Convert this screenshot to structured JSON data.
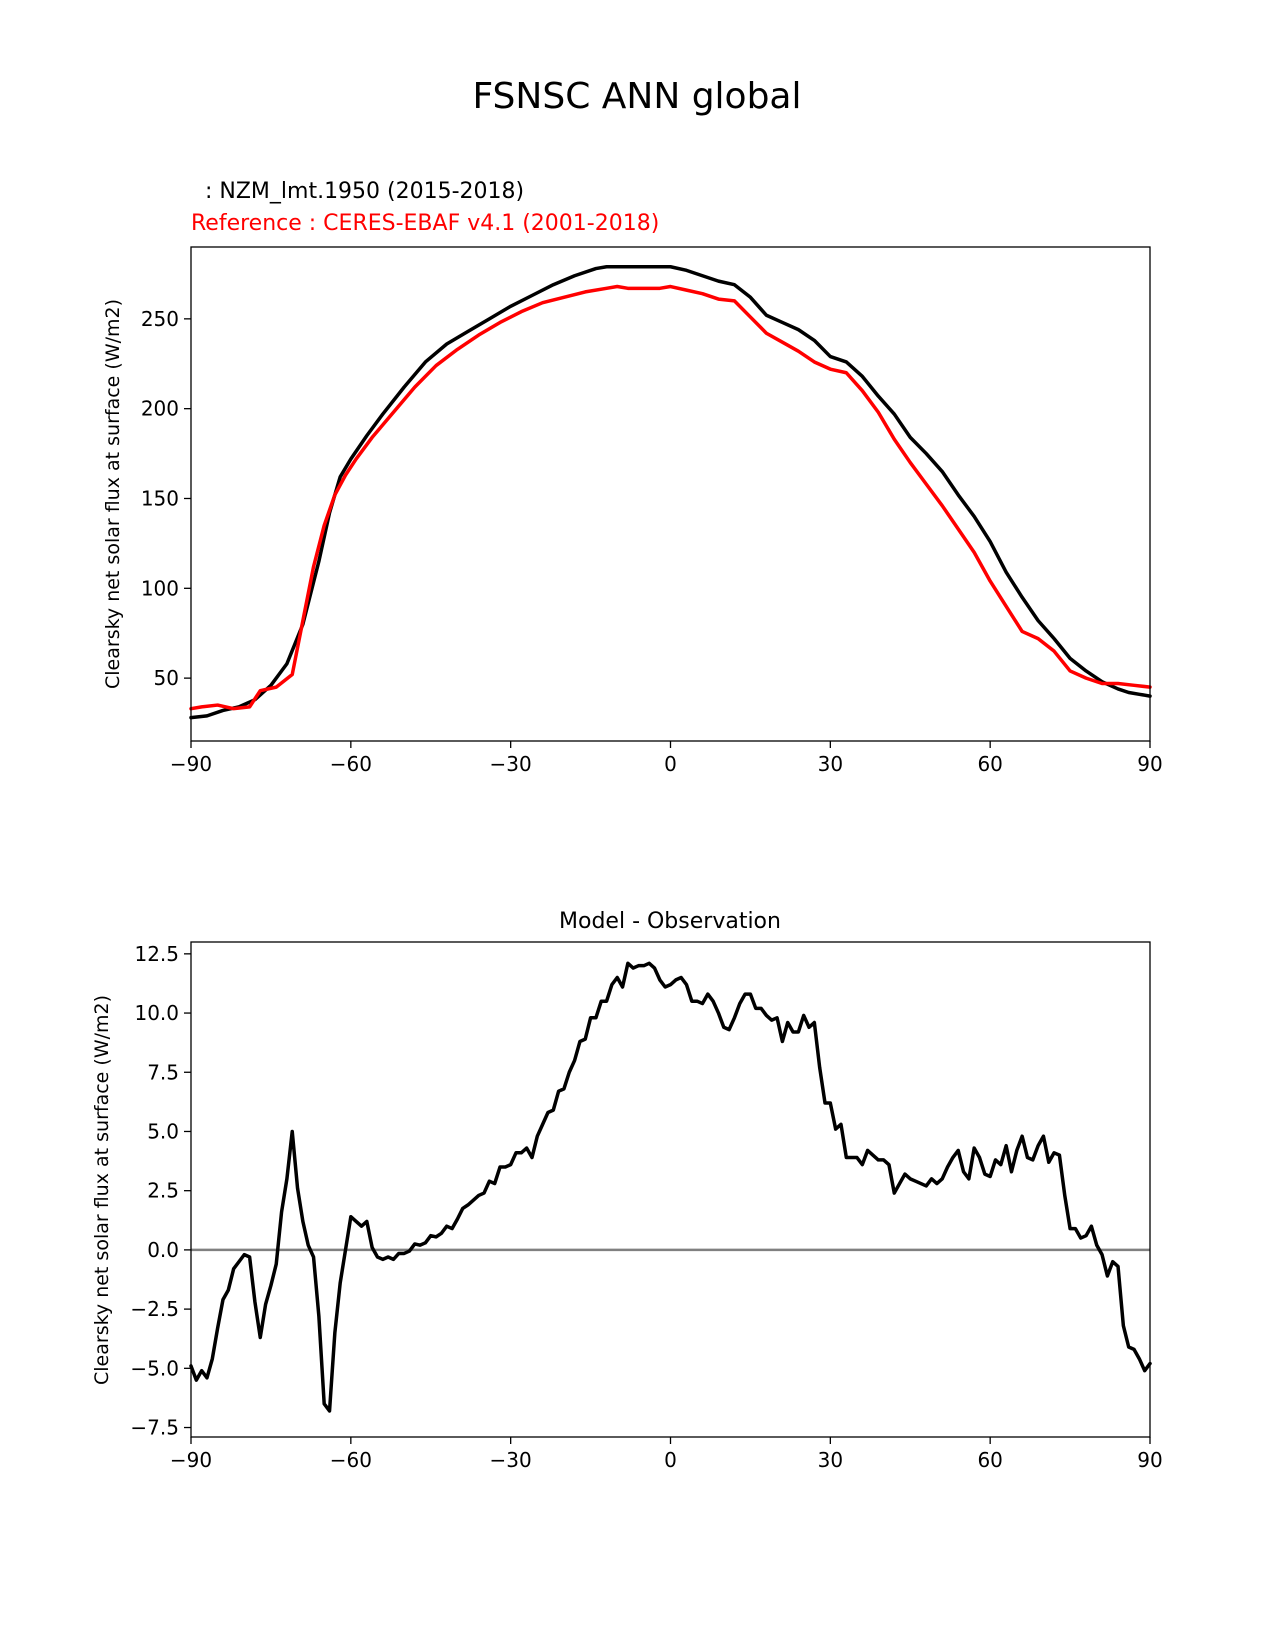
{
  "figure": {
    "suptitle": "FSNSC ANN global"
  },
  "chart_data": [
    {
      "type": "line",
      "title_lines": [
        {
          "text": "  : NZM_lmt.1950 (2015-2018)",
          "color": "#000000"
        },
        {
          "text": "Reference : CERES-EBAF v4.1 (2001-2018)",
          "color": "#ff0000"
        }
      ],
      "xlabel": "",
      "ylabel": "Clearsky net solar flux at surface (W/m2)",
      "xlim": [
        -90,
        90
      ],
      "ylim": [
        15,
        290
      ],
      "xticks": [
        -90,
        -60,
        -30,
        0,
        30,
        60,
        90
      ],
      "xtick_labels": [
        "−90",
        "−60",
        "−30",
        "0",
        "30",
        "60",
        "90"
      ],
      "yticks": [
        50,
        100,
        150,
        200,
        250
      ],
      "ytick_labels": [
        "50",
        "100",
        "150",
        "200",
        "250"
      ],
      "series": [
        {
          "name": "NZM_lmt.1950 (2015-2018)",
          "color": "#000000",
          "x": [
            -90,
            -87,
            -84,
            -81,
            -78,
            -75,
            -72,
            -69,
            -66,
            -64,
            -62,
            -60,
            -57,
            -54,
            -50,
            -46,
            -42,
            -38,
            -34,
            -30,
            -26,
            -22,
            -18,
            -14,
            -12,
            -10,
            -8,
            -6,
            -4,
            -2,
            0,
            3,
            6,
            9,
            12,
            15,
            18,
            21,
            24,
            27,
            30,
            33,
            36,
            39,
            42,
            45,
            48,
            51,
            54,
            57,
            60,
            63,
            66,
            69,
            72,
            75,
            78,
            81,
            84,
            86,
            88,
            90
          ],
          "y": [
            28,
            29,
            32,
            34,
            38,
            46,
            58,
            80,
            115,
            142,
            162,
            172,
            185,
            197,
            212,
            226,
            236,
            243,
            250,
            257,
            263,
            269,
            274,
            278,
            279,
            279,
            279,
            279,
            279,
            279,
            279,
            277,
            274,
            271,
            269,
            262,
            252,
            248,
            244,
            238,
            229,
            226,
            218,
            207,
            197,
            184,
            175,
            165,
            152,
            140,
            126,
            109,
            95,
            82,
            72,
            61,
            54,
            48,
            44,
            42,
            41,
            40
          ]
        },
        {
          "name": "Reference : CERES-EBAF v4.1 (2001-2018)",
          "color": "#ff0000",
          "x": [
            -90,
            -88,
            -85,
            -82,
            -79,
            -77,
            -74,
            -71,
            -69,
            -67,
            -65,
            -63,
            -61,
            -59,
            -56,
            -52,
            -48,
            -44,
            -40,
            -36,
            -32,
            -28,
            -24,
            -20,
            -16,
            -12,
            -10,
            -8,
            -6,
            -4,
            -2,
            0,
            3,
            6,
            9,
            12,
            15,
            18,
            21,
            24,
            27,
            30,
            33,
            36,
            39,
            42,
            45,
            48,
            51,
            54,
            57,
            60,
            63,
            66,
            69,
            72,
            75,
            78,
            81,
            84,
            87,
            90
          ],
          "y": [
            33,
            34,
            35,
            33,
            34,
            43,
            45,
            52,
            82,
            112,
            135,
            152,
            163,
            172,
            184,
            198,
            212,
            224,
            233,
            241,
            248,
            254,
            259,
            262,
            265,
            267,
            268,
            267,
            267,
            267,
            267,
            268,
            266,
            264,
            261,
            260,
            251,
            242,
            237,
            232,
            226,
            222,
            220,
            210,
            198,
            183,
            170,
            158,
            146,
            133,
            120,
            104,
            90,
            76,
            72,
            65,
            54,
            50,
            47,
            47,
            46,
            45
          ]
        }
      ]
    },
    {
      "type": "line",
      "title": "Model - Observation",
      "xlabel": "",
      "ylabel": "Clearsky net solar flux at surface (W/m2)",
      "xlim": [
        -90,
        90
      ],
      "ylim": [
        -7.9,
        13.0
      ],
      "xticks": [
        -90,
        -60,
        -30,
        0,
        30,
        60,
        90
      ],
      "xtick_labels": [
        "−90",
        "−60",
        "−30",
        "0",
        "30",
        "60",
        "90"
      ],
      "yticks": [
        -7.5,
        -5.0,
        -2.5,
        0.0,
        2.5,
        5.0,
        7.5,
        10.0,
        12.5
      ],
      "ytick_labels": [
        "−7.5",
        "−5.0",
        "−2.5",
        "0.0",
        "2.5",
        "5.0",
        "7.5",
        "10.0",
        "12.5"
      ],
      "zero_line_color": "#808080",
      "series": [
        {
          "name": "Model - Observation",
          "color": "#000000",
          "x": [
            -90,
            -89,
            -88,
            -87,
            -86,
            -85,
            -84,
            -83,
            -82,
            -81,
            -80,
            -79,
            -78,
            -77,
            -76,
            -75,
            -74,
            -73,
            -72,
            -71,
            -70,
            -69,
            -68,
            -67,
            -66,
            -65,
            -64,
            -63,
            -62,
            -61,
            -60,
            -59,
            -58,
            -57,
            -56,
            -55,
            -54,
            -53,
            -52,
            -51,
            -50,
            -49,
            -48,
            -47,
            -46,
            -45,
            -44,
            -43,
            -42,
            -41,
            -40,
            -39,
            -38,
            -37,
            -36,
            -35,
            -34,
            -33,
            -32,
            -31,
            -30,
            -29,
            -28,
            -27,
            -26,
            -25,
            -24,
            -23,
            -22,
            -21,
            -20,
            -19,
            -18,
            -17,
            -16,
            -15,
            -14,
            -13,
            -12,
            -11,
            -10,
            -9,
            -8,
            -7,
            -6,
            -5,
            -4,
            -3,
            -2,
            -1,
            0,
            1,
            2,
            3,
            4,
            5,
            6,
            7,
            8,
            9,
            10,
            11,
            12,
            13,
            14,
            15,
            16,
            17,
            18,
            19,
            20,
            21,
            22,
            23,
            24,
            25,
            26,
            27,
            28,
            29,
            30,
            31,
            32,
            33,
            34,
            35,
            36,
            37,
            38,
            39,
            40,
            41,
            42,
            43,
            44,
            45,
            46,
            47,
            48,
            49,
            50,
            51,
            52,
            53,
            54,
            55,
            56,
            57,
            58,
            59,
            60,
            61,
            62,
            63,
            64,
            65,
            66,
            67,
            68,
            69,
            70,
            71,
            72,
            73,
            74,
            75,
            76,
            77,
            78,
            79,
            80,
            81,
            82,
            83,
            84,
            85,
            86,
            87,
            88,
            89,
            90
          ],
          "y": [
            -4.9,
            -5.5,
            -5.1,
            -5.4,
            -4.6,
            -3.3,
            -2.1,
            -1.7,
            -0.8,
            -0.5,
            -0.2,
            -0.3,
            -2.2,
            -3.7,
            -2.3,
            -1.5,
            -0.6,
            1.6,
            3.0,
            5.0,
            2.6,
            1.2,
            0.2,
            -0.3,
            -2.8,
            -6.5,
            -6.8,
            -3.5,
            -1.4,
            0.0,
            1.4,
            1.2,
            1.0,
            1.2,
            0.1,
            -0.3,
            -0.4,
            -0.3,
            -0.4,
            -0.15,
            -0.15,
            -0.05,
            0.25,
            0.2,
            0.3,
            0.6,
            0.55,
            0.7,
            1.0,
            0.9,
            1.3,
            1.75,
            1.9,
            2.1,
            2.3,
            2.4,
            2.9,
            2.8,
            3.5,
            3.5,
            3.6,
            4.1,
            4.1,
            4.3,
            3.9,
            4.8,
            5.3,
            5.8,
            5.9,
            6.7,
            6.8,
            7.5,
            8.0,
            8.8,
            8.9,
            9.8,
            9.8,
            10.5,
            10.5,
            11.2,
            11.5,
            11.1,
            12.1,
            11.9,
            12.0,
            12.0,
            12.1,
            11.9,
            11.4,
            11.1,
            11.2,
            11.4,
            11.5,
            11.2,
            10.5,
            10.5,
            10.4,
            10.8,
            10.5,
            10.0,
            9.4,
            9.3,
            9.8,
            10.4,
            10.8,
            10.8,
            10.2,
            10.2,
            9.9,
            9.7,
            9.8,
            8.8,
            9.6,
            9.2,
            9.2,
            9.9,
            9.4,
            9.6,
            7.7,
            6.2,
            6.2,
            5.1,
            5.3,
            3.9,
            3.9,
            3.9,
            3.6,
            4.2,
            4.0,
            3.8,
            3.8,
            3.6,
            2.4,
            2.8,
            3.2,
            3.0,
            2.9,
            2.8,
            2.7,
            3.0,
            2.8,
            3.0,
            3.5,
            3.9,
            4.2,
            3.3,
            3.0,
            4.3,
            3.9,
            3.2,
            3.1,
            3.8,
            3.6,
            4.4,
            3.3,
            4.2,
            4.8,
            3.9,
            3.8,
            4.4,
            4.8,
            3.7,
            4.1,
            4.0,
            2.3,
            0.9,
            0.9,
            0.5,
            0.6,
            1.0,
            0.2,
            -0.2,
            -1.1,
            -0.5,
            -0.7,
            -3.2,
            -4.1,
            -4.2,
            -4.6,
            -5.1,
            -4.8
          ]
        }
      ]
    }
  ]
}
